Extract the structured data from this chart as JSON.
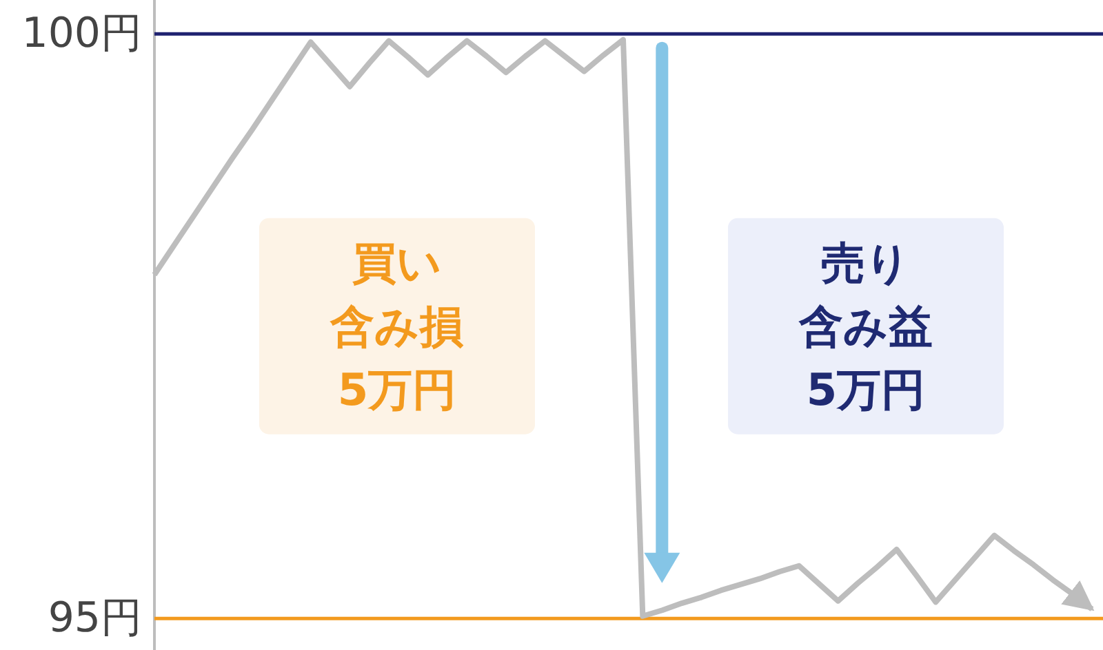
{
  "chart_data": {
    "type": "line",
    "categories": [
      null,
      null,
      null,
      null,
      null,
      null,
      null,
      null,
      null,
      null,
      null,
      null,
      null,
      null,
      null,
      null,
      null,
      null,
      null,
      null,
      null,
      null,
      null,
      null,
      null,
      null,
      null,
      null,
      null,
      null,
      null,
      null,
      null,
      null,
      null,
      null,
      null,
      null,
      null,
      null,
      null,
      null,
      null,
      null,
      null,
      null,
      null,
      null,
      null
    ],
    "values": [
      97.94,
      98.19,
      98.44,
      98.69,
      98.94,
      99.18,
      99.43,
      99.68,
      99.93,
      99.74,
      99.55,
      99.75,
      99.94,
      99.8,
      99.65,
      99.8,
      99.94,
      99.81,
      99.67,
      99.81,
      99.94,
      99.81,
      99.68,
      99.82,
      99.95,
      95.02,
      95.07,
      95.13,
      95.18,
      95.24,
      95.29,
      95.34,
      95.4,
      95.45,
      95.3,
      95.15,
      95.3,
      95.44,
      95.59,
      95.37,
      95.14,
      95.33,
      95.52,
      95.71,
      95.58,
      95.46,
      95.33,
      95.21,
      95.08
    ],
    "color": "#bdbdbd",
    "ylim": [
      94.73,
      100.29
    ],
    "yticks": [
      {
        "value": 95,
        "label": "95円"
      },
      {
        "value": 100,
        "label": "100円"
      }
    ],
    "tick_labels": "y",
    "ref_lines": [
      {
        "axis": "y",
        "value": 100,
        "color": "#1f2270"
      },
      {
        "axis": "y",
        "value": 95,
        "color": "#f39a1e"
      }
    ],
    "annotations": [
      "買い含み損5万円",
      "売り含み益5万円"
    ]
  }
}
